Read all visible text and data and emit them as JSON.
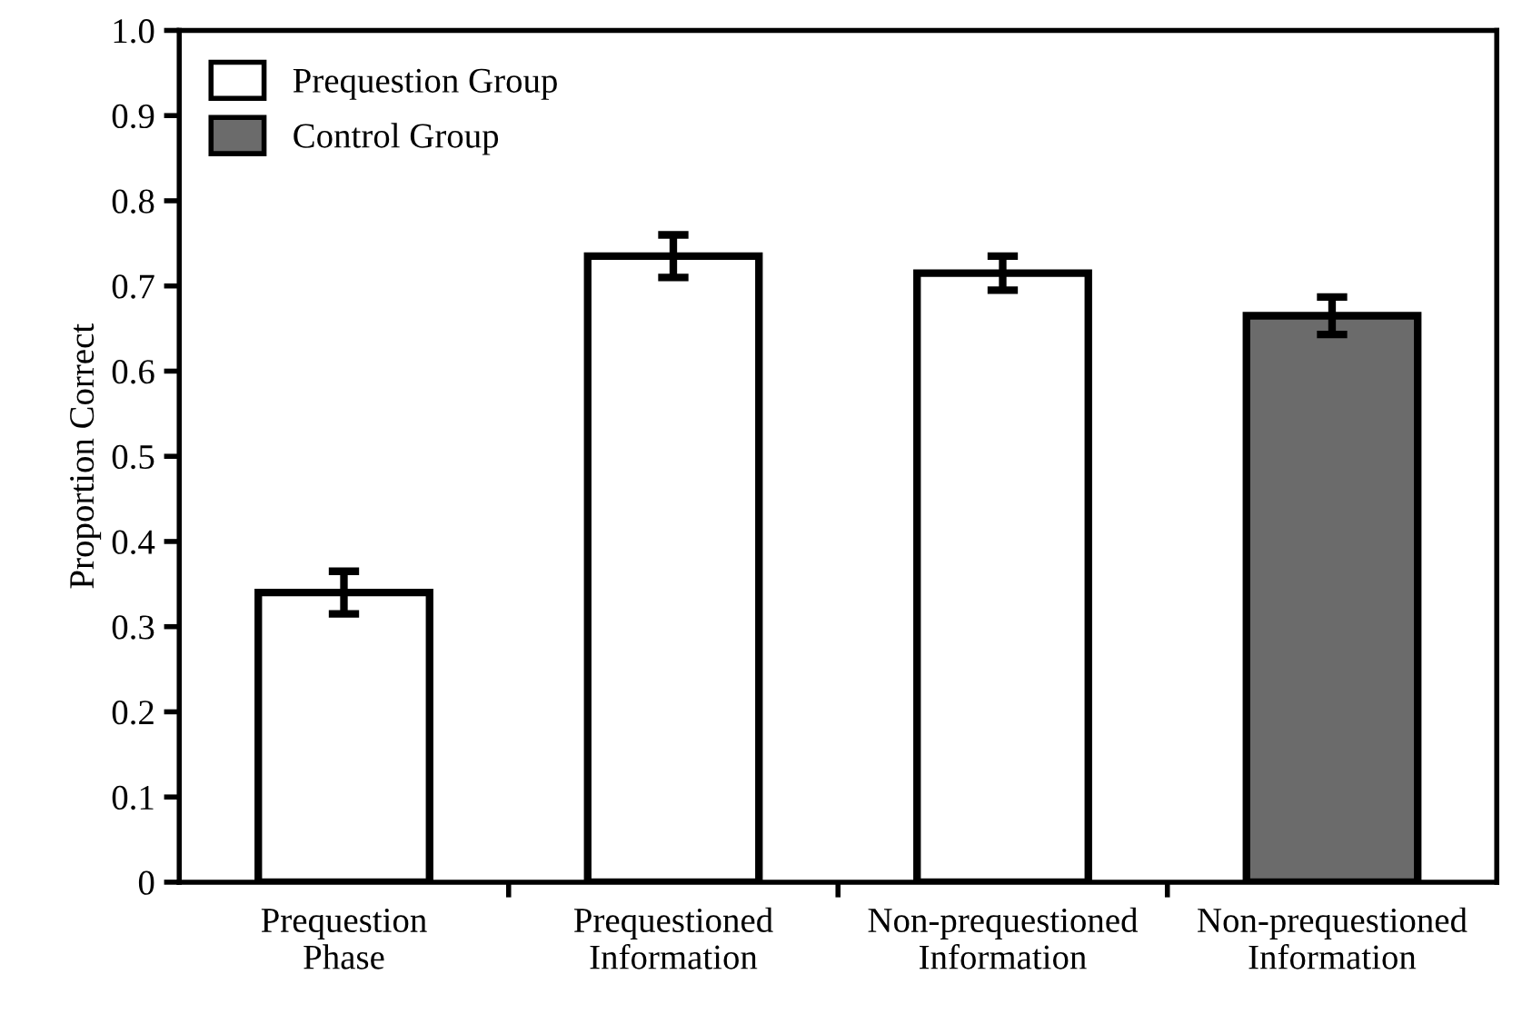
{
  "chart_data": {
    "type": "bar",
    "ylabel": "Proportion Correct",
    "categories": [
      "Prequestion\nPhase",
      "Prequestioned\nInformation",
      "Non-prequestioned\nInformation",
      "Non-prequestioned\nInformation"
    ],
    "series": [
      {
        "name": "Prequestion Group",
        "color": "#ffffff",
        "values": [
          0.34,
          0.735,
          0.715,
          null
        ],
        "errors": [
          0.025,
          0.025,
          0.02,
          null
        ]
      },
      {
        "name": "Control Group",
        "color": "#6b6b6b",
        "values": [
          null,
          null,
          null,
          0.665
        ],
        "errors": [
          null,
          null,
          null,
          0.022
        ]
      }
    ],
    "ylim": [
      0,
      1.0
    ],
    "yticks": [
      {
        "value": 0,
        "label": "0"
      },
      0.1,
      0.2,
      0.3,
      0.4,
      0.5,
      0.6,
      0.7,
      0.8,
      0.9,
      {
        "value": 1.0,
        "label": "1.0"
      }
    ],
    "legend": "top left",
    "grid": false
  }
}
